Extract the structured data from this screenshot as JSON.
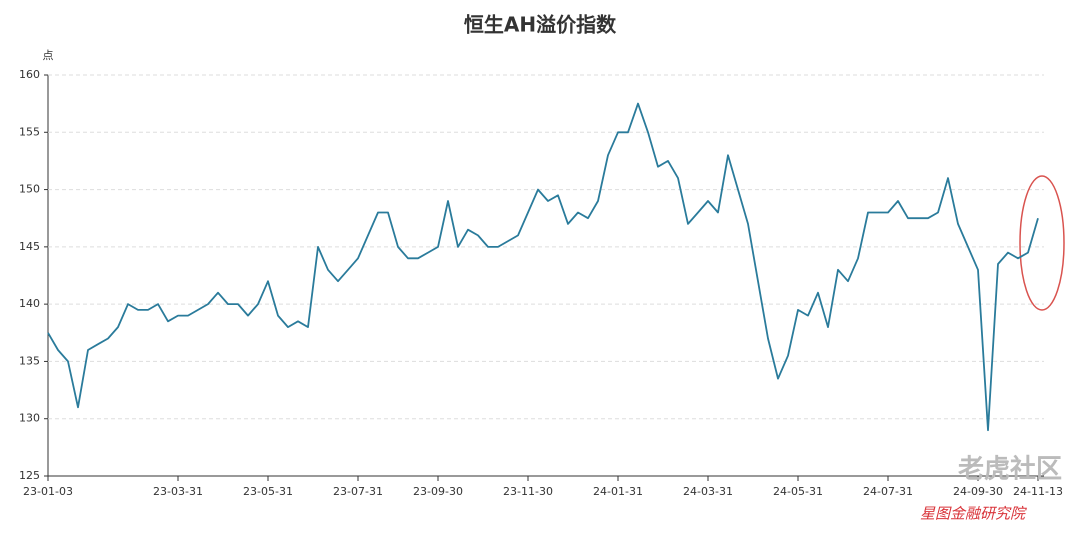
{
  "chart_data": {
    "type": "line",
    "title": "恒生AH溢价指数",
    "y_axis_label": "点",
    "watermark": "老虎社区",
    "source": "星图金融研究院",
    "color": "#2a7b9b",
    "grid": true,
    "ylim": [
      125,
      160
    ],
    "yticks": [
      125,
      130,
      135,
      140,
      145,
      150,
      155,
      160
    ],
    "categories": [
      "23-01-03",
      null,
      null,
      null,
      null,
      null,
      null,
      null,
      null,
      null,
      null,
      null,
      null,
      "23-03-31",
      null,
      null,
      null,
      null,
      null,
      null,
      null,
      null,
      "23-05-31",
      null,
      null,
      null,
      null,
      null,
      null,
      null,
      null,
      "23-07-31",
      null,
      null,
      null,
      null,
      null,
      null,
      null,
      "23-09-30",
      null,
      null,
      null,
      null,
      null,
      null,
      null,
      null,
      "23-11-30",
      null,
      null,
      null,
      null,
      null,
      null,
      null,
      null,
      "24-01-31",
      null,
      null,
      null,
      null,
      null,
      null,
      null,
      null,
      "24-03-31",
      null,
      null,
      null,
      null,
      null,
      null,
      null,
      null,
      "24-05-31",
      null,
      null,
      null,
      null,
      null,
      null,
      null,
      null,
      "24-07-31",
      null,
      null,
      null,
      null,
      null,
      null,
      null,
      null,
      "24-09-30",
      null,
      null,
      null,
      null,
      null,
      "24-11-13"
    ],
    "values": [
      137.5,
      136,
      135,
      131,
      136,
      136.5,
      137,
      138,
      140,
      139.5,
      139.5,
      140,
      138.5,
      139,
      139,
      139.5,
      140,
      141,
      140,
      140,
      139,
      140,
      142,
      139,
      138,
      138.5,
      138,
      145,
      143,
      142,
      143,
      144,
      146,
      148,
      148,
      145,
      144,
      144,
      144.5,
      145,
      149,
      145,
      146.5,
      146,
      145,
      145,
      145.5,
      146,
      148,
      150,
      149,
      149.5,
      147,
      148,
      147.5,
      149,
      153,
      155,
      155,
      157.5,
      155,
      152,
      152.5,
      151,
      147,
      148,
      149,
      148,
      153,
      150,
      147,
      142,
      137,
      133.5,
      135.5,
      139.5,
      139,
      141,
      138,
      143,
      142,
      144,
      148,
      148,
      148,
      149,
      147.5,
      147.5,
      147.5,
      148,
      151,
      147,
      145,
      143,
      129,
      143.5,
      144.5,
      144,
      144.5,
      147.5
    ]
  }
}
